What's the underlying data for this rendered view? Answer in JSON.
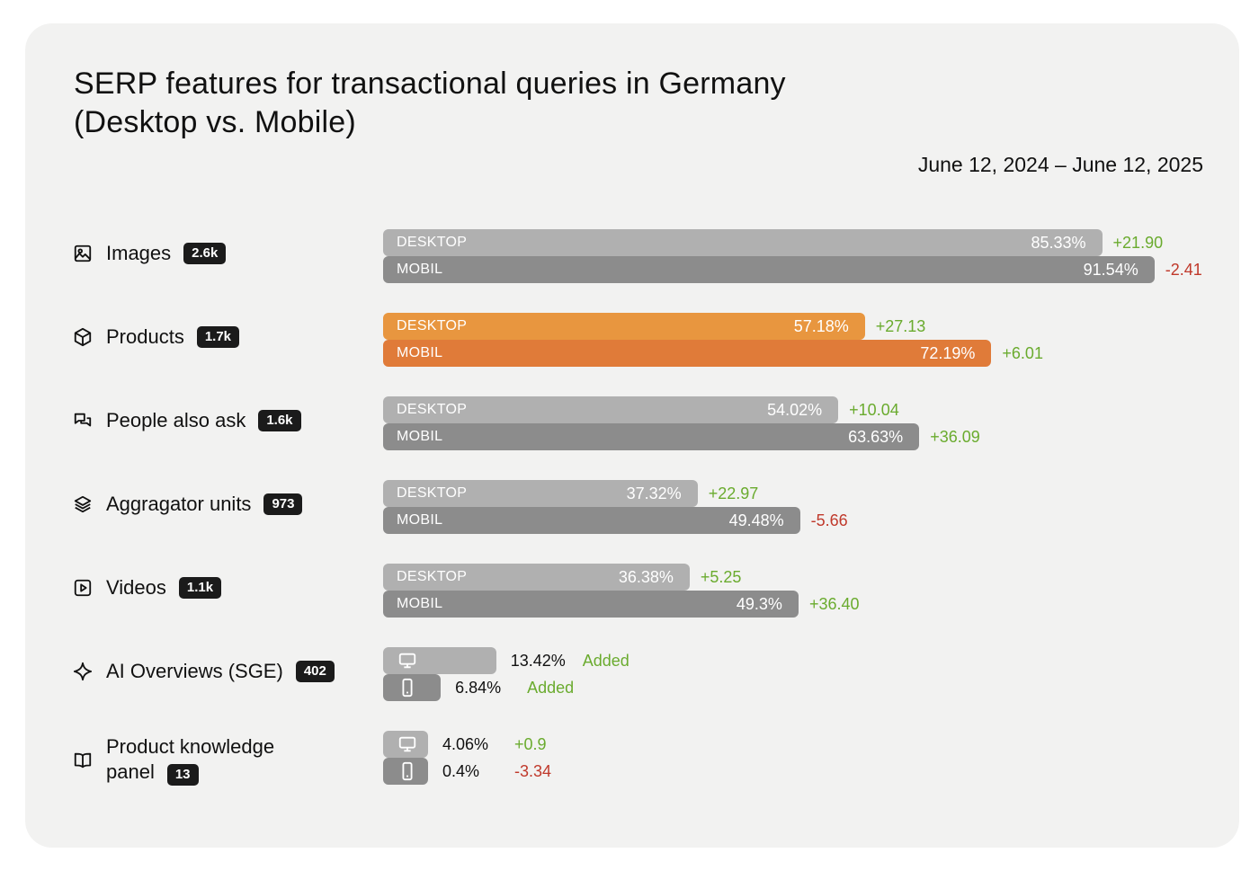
{
  "chart_data": {
    "type": "bar",
    "title": "SERP features for transactional queries in Germany (Desktop vs. Mobile)",
    "title_lines": [
      "SERP features for transactional queries in Germany",
      "(Desktop vs. Mobile)"
    ],
    "date_range": "June 12, 2024 – June 12, 2025",
    "series": [
      {
        "name": "DESKTOP"
      },
      {
        "name": "MOBIL"
      }
    ],
    "categories": [
      "Images",
      "Products",
      "People also ask",
      "Aggragator units",
      "Videos",
      "AI Overviews (SGE)",
      "Product knowledge panel"
    ],
    "label_lines": {
      "product_knowledge_panel": [
        "Product knowledge",
        "panel"
      ]
    },
    "counts": [
      "2.6k",
      "1.7k",
      "1.6k",
      "973",
      "1.1k",
      "402",
      "13"
    ],
    "desktop": {
      "values": [
        85.33,
        57.18,
        54.02,
        37.32,
        36.38,
        13.42,
        4.06
      ],
      "labels": [
        "85.33%",
        "57.18%",
        "54.02%",
        "37.32%",
        "36.38%",
        "13.42%",
        "4.06%"
      ],
      "deltas": [
        "+21.90",
        "+27.13",
        "+10.04",
        "+22.97",
        "+5.25",
        "Added",
        "+0.9"
      ]
    },
    "mobile": {
      "values": [
        91.54,
        72.19,
        63.63,
        49.48,
        49.3,
        6.84,
        0.4
      ],
      "labels": [
        "91.54%",
        "72.19%",
        "63.63%",
        "49.48%",
        "49.3%",
        "6.84%",
        "0.4%"
      ],
      "deltas": [
        "-2.41",
        "+6.01",
        "+36.09",
        "-5.66",
        "+36.40",
        "Added",
        "-3.34"
      ]
    },
    "highlight_category": "Products",
    "icons": [
      "image-icon",
      "cube-icon",
      "chat-bubbles-icon",
      "layers-icon",
      "play-icon",
      "sparkle-icon",
      "book-icon"
    ],
    "colors": {
      "desktop_bar": "#b0b0b0",
      "mobile_bar": "#8c8c8c",
      "highlight_desktop": "#e8963f",
      "highlight_mobile": "#e07b39",
      "positive": "#6aab2e",
      "negative": "#c0392b",
      "badge": "#1b1b1b",
      "card": "#f2f2f1"
    },
    "xlim": [
      0,
      100
    ],
    "legend": "inline"
  }
}
